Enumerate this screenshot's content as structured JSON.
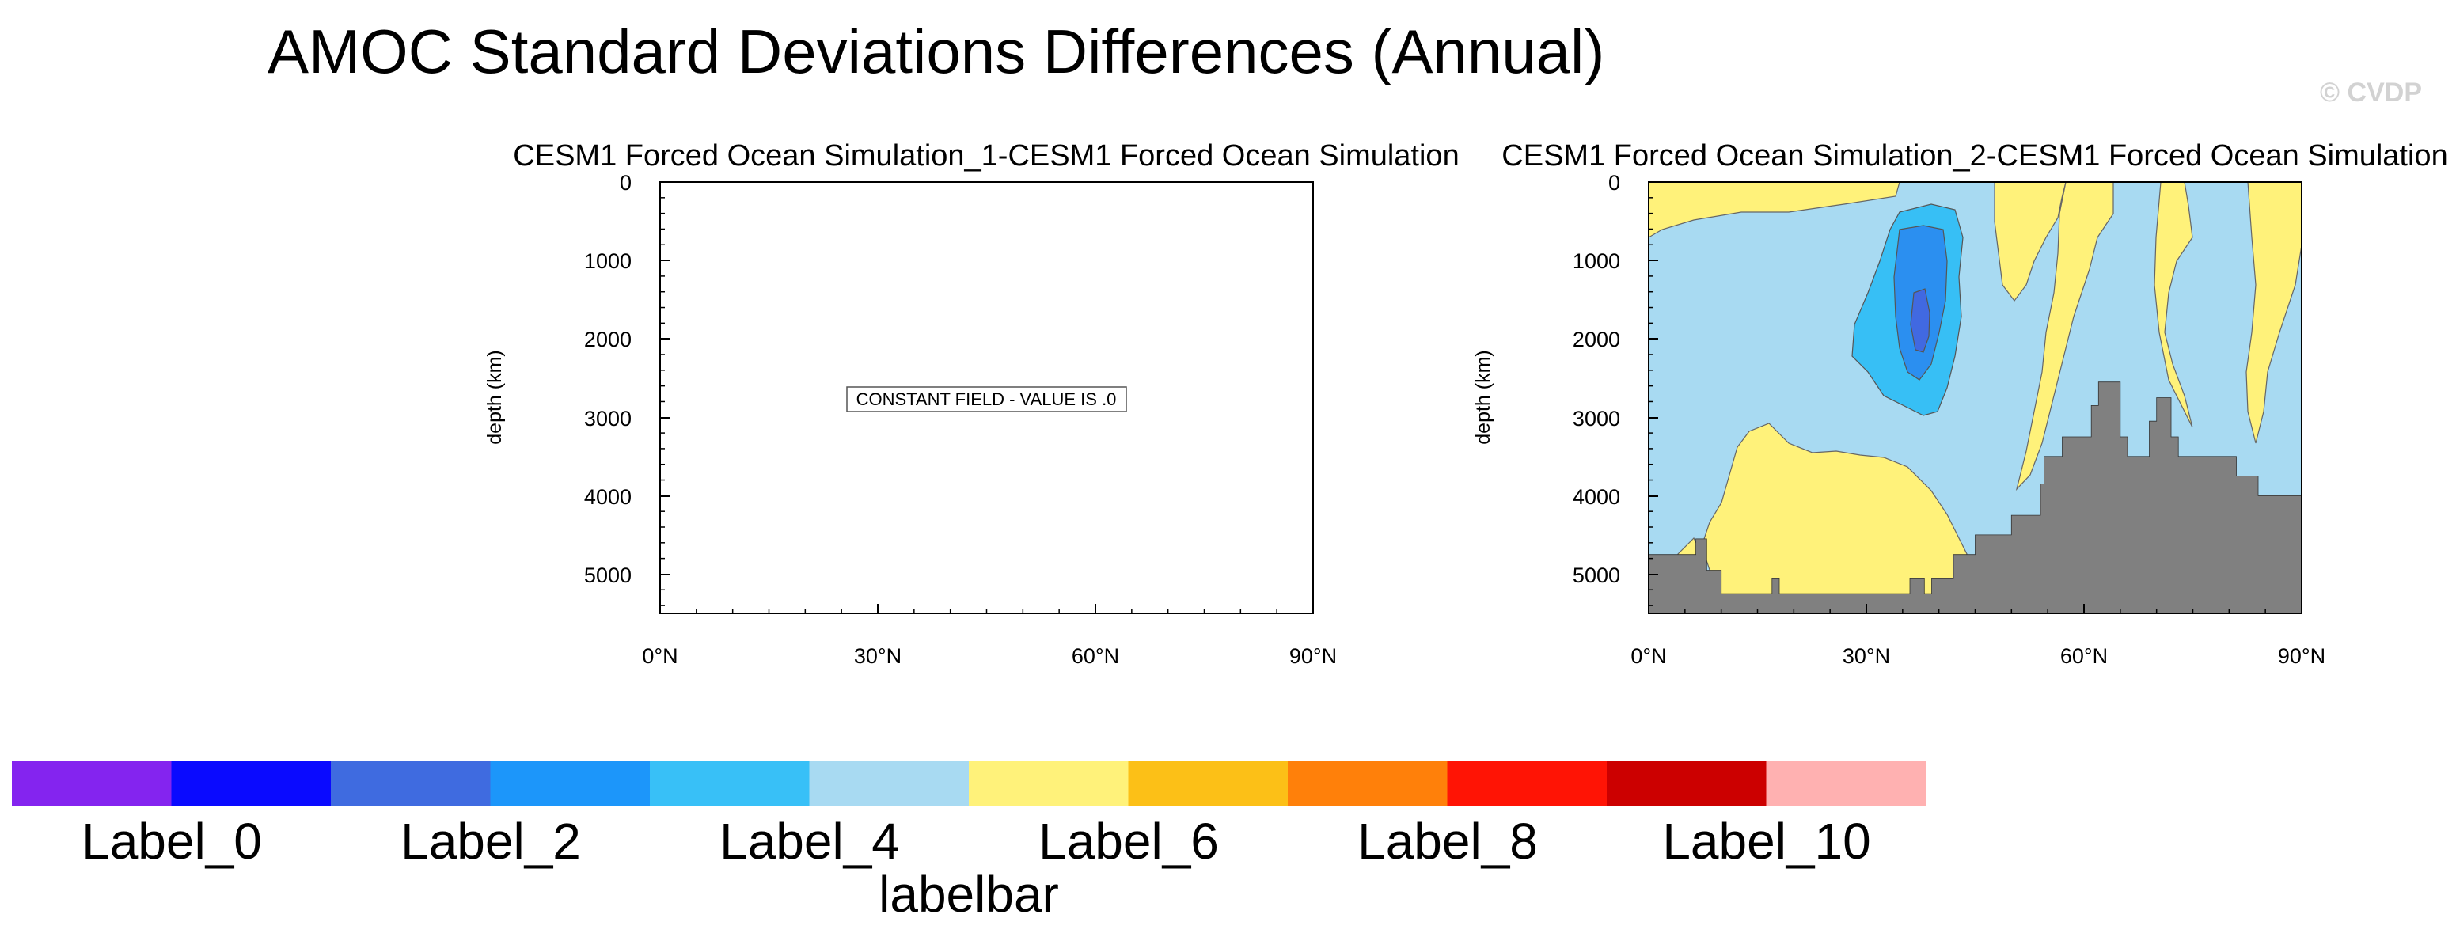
{
  "title": "AMOC Standard Deviations Differences (Annual)",
  "watermark": "© CVDP",
  "chart_data": [
    {
      "type": "heatmap",
      "title": "CESM1 Forced Ocean Simulation_1-CESM1 Forced Ocean Simulation",
      "xlabel": "",
      "ylabel": "depth (km)",
      "x_ticks": [
        "0°N",
        "30°N",
        "60°N",
        "90°N"
      ],
      "y_ticks": [
        "0",
        "1000",
        "2000",
        "3000",
        "4000",
        "5000"
      ],
      "xlim": [
        0,
        90
      ],
      "ylim": [
        0,
        5500
      ],
      "note": "CONSTANT FIELD - VALUE IS .0"
    },
    {
      "type": "heatmap",
      "title": "CESM1 Forced Ocean Simulation_2-CESM1 Forced Ocean Simulation",
      "xlabel": "",
      "ylabel": "depth (km)",
      "x_ticks": [
        "0°N",
        "30°N",
        "60°N",
        "90°N"
      ],
      "y_ticks": [
        "0",
        "1000",
        "2000",
        "3000",
        "4000",
        "5000"
      ],
      "xlim": [
        0,
        90
      ],
      "ylim": [
        0,
        5500
      ],
      "fill_colors": {
        "background": "#a8daf2",
        "positive_band": "#fff27a",
        "neg_level_1": "#37bff5",
        "neg_level_2": "#2b8ff0",
        "neg_level_3": "#4169e1",
        "bathymetry": "#808080"
      },
      "bathymetry_depth_m": [
        [
          0,
          4750
        ],
        [
          6.5,
          4750
        ],
        [
          6.5,
          4550
        ],
        [
          8,
          4550
        ],
        [
          8,
          4950
        ],
        [
          10,
          4950
        ],
        [
          10,
          5250
        ],
        [
          17,
          5250
        ],
        [
          17,
          5050
        ],
        [
          18,
          5050
        ],
        [
          18,
          5250
        ],
        [
          36,
          5250
        ],
        [
          36,
          5050
        ],
        [
          38,
          5050
        ],
        [
          38,
          5250
        ],
        [
          39,
          5250
        ],
        [
          39,
          5050
        ],
        [
          42,
          5050
        ],
        [
          42,
          4750
        ],
        [
          45,
          4750
        ],
        [
          45,
          4500
        ],
        [
          50,
          4500
        ],
        [
          50,
          4250
        ],
        [
          54,
          4250
        ],
        [
          54,
          3850
        ],
        [
          54.5,
          3850
        ],
        [
          54.5,
          3500
        ],
        [
          57,
          3500
        ],
        [
          57,
          3250
        ],
        [
          61,
          3250
        ],
        [
          61,
          2850
        ],
        [
          62,
          2850
        ],
        [
          62,
          2550
        ],
        [
          65,
          2550
        ],
        [
          65,
          3250
        ],
        [
          66,
          3250
        ],
        [
          66,
          3500
        ],
        [
          69,
          3500
        ],
        [
          69,
          3050
        ],
        [
          70,
          3050
        ],
        [
          70,
          2750
        ],
        [
          72,
          2750
        ],
        [
          72,
          3250
        ],
        [
          73,
          3250
        ],
        [
          73,
          3500
        ],
        [
          81,
          3500
        ],
        [
          81,
          3750
        ],
        [
          84,
          3750
        ],
        [
          84,
          4000
        ],
        [
          90,
          4000
        ]
      ]
    }
  ],
  "labelbar": {
    "title": "labelbar",
    "colors": [
      "#8424ef",
      "#0a0aff",
      "#3f6be0",
      "#1c96fa",
      "#38c0f7",
      "#a8daf2",
      "#fff27a",
      "#fcc017",
      "#ff800a",
      "#ff1405",
      "#cc0000",
      "#ffb1b1"
    ],
    "labels": [
      "Label_0",
      "Label_2",
      "Label_4",
      "Label_6",
      "Label_8",
      "Label_10"
    ]
  }
}
